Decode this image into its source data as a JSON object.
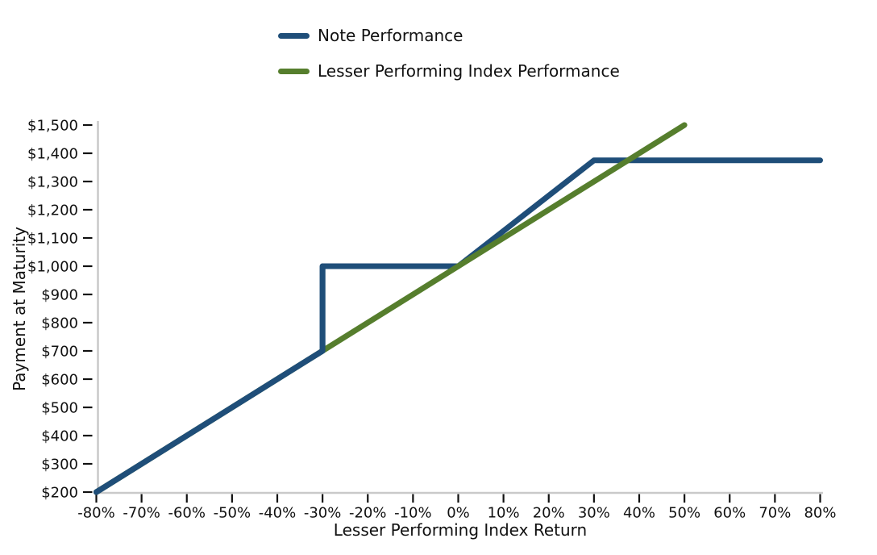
{
  "chart_data": {
    "type": "line",
    "title": "",
    "xlabel": "Lesser Performing Index Return",
    "ylabel": "Payment at Maturity",
    "xlim": [
      -80,
      80
    ],
    "ylim": [
      200,
      1500
    ],
    "grid": false,
    "legend_position": "top-center",
    "x_tick_values": [
      -80,
      -70,
      -60,
      -50,
      -40,
      -30,
      -20,
      -10,
      0,
      10,
      20,
      30,
      40,
      50,
      60,
      70,
      80
    ],
    "x_ticks": [
      "-80%",
      "-70%",
      "-60%",
      "-50%",
      "-40%",
      "-30%",
      "-20%",
      "-10%",
      "0%",
      "10%",
      "20%",
      "30%",
      "40%",
      "50%",
      "60%",
      "70%",
      "80%"
    ],
    "y_tick_values": [
      200,
      300,
      400,
      500,
      600,
      700,
      800,
      900,
      1000,
      1100,
      1200,
      1300,
      1400,
      1500
    ],
    "y_ticks": [
      "$200",
      "$300",
      "$400",
      "$500",
      "$600",
      "$700",
      "$800",
      "$900",
      "$1,000",
      "$1,100",
      "$1,200",
      "$1,300",
      "$1,400",
      "$1,500"
    ],
    "series": [
      {
        "name": "Note Performance",
        "color": "#1f4e79",
        "points": [
          [
            -80,
            200
          ],
          [
            -30,
            700
          ],
          [
            -30,
            1000
          ],
          [
            0,
            1000
          ],
          [
            30,
            1375
          ],
          [
            80,
            1375
          ]
        ],
        "overlay_until_index": 2
      },
      {
        "name": "Lesser Performing Index Performance",
        "color": "#567e2d",
        "points": [
          [
            -80,
            200
          ],
          [
            50,
            1500
          ]
        ]
      }
    ],
    "spine_color": "#c9c9c9",
    "tick_color": "#111111",
    "text_color": "#111111"
  }
}
